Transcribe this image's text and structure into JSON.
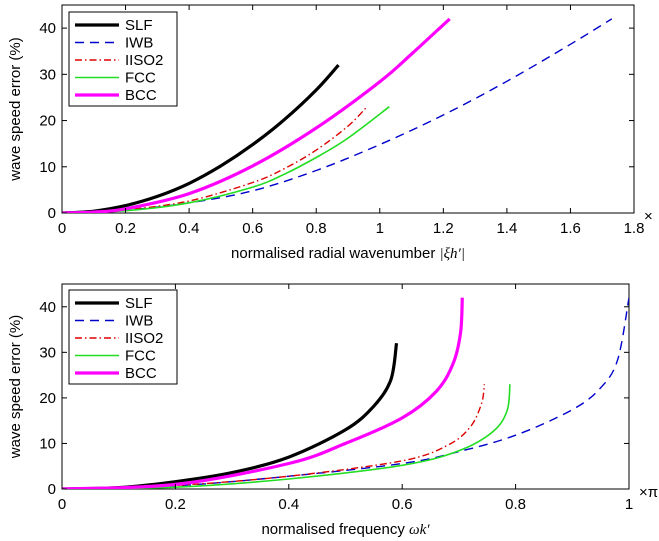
{
  "chart_data": [
    {
      "type": "line",
      "xlabel_text": "normalised radial wavenumber",
      "xlabel_math": "|ξh′|",
      "ylabel": "wave speed error (%)",
      "x_multiplier": "×",
      "xlim": [
        0,
        1.8
      ],
      "ylim": [
        0,
        45
      ],
      "xticks": [
        0,
        0.2,
        0.4,
        0.6,
        0.8,
        1,
        1.2,
        1.4,
        1.6,
        1.8
      ],
      "xtick_labels": [
        "0",
        "0.2",
        "0.4",
        "0.6",
        "0.8",
        "1",
        "1.2",
        "1.4",
        "1.6",
        "1.8"
      ],
      "yticks": [
        0,
        10,
        20,
        30,
        40
      ],
      "ytick_labels": [
        "0",
        "10",
        "20",
        "30",
        "40"
      ],
      "legend_position": "top-left",
      "series": [
        {
          "name": "SLF",
          "color": "#000000",
          "width": 3.2,
          "dash": "",
          "x": [
            0,
            0.1,
            0.2,
            0.3,
            0.4,
            0.5,
            0.6,
            0.7,
            0.8,
            0.87
          ],
          "y": [
            0,
            0.4,
            1.6,
            3.6,
            6.4,
            10.2,
            14.8,
            20.2,
            26.6,
            32
          ]
        },
        {
          "name": "IWB",
          "color": "#0000cc",
          "width": 1.4,
          "dash": "9,6",
          "x": [
            0,
            0.2,
            0.4,
            0.6,
            0.8,
            1.0,
            1.2,
            1.4,
            1.6,
            1.73
          ],
          "y": [
            0,
            0.6,
            2.2,
            4.8,
            9.2,
            14.8,
            21.2,
            28.5,
            36.5,
            42
          ]
        },
        {
          "name": "IISO2",
          "color": "#dd0000",
          "width": 1.4,
          "dash": "7,3,1.5,3",
          "x": [
            0,
            0.2,
            0.4,
            0.6,
            0.7,
            0.8,
            0.9,
            0.96
          ],
          "y": [
            0,
            0.7,
            2.6,
            6.6,
            9.6,
            13.6,
            18.8,
            23
          ]
        },
        {
          "name": "FCC",
          "color": "#22dd22",
          "width": 1.6,
          "dash": "",
          "x": [
            0,
            0.2,
            0.4,
            0.6,
            0.7,
            0.8,
            0.9,
            1.03
          ],
          "y": [
            0,
            0.5,
            2.2,
            5.6,
            8.4,
            12.0,
            16.2,
            23
          ]
        },
        {
          "name": "BCC",
          "color": "#ff00ff",
          "width": 3.2,
          "dash": "",
          "x": [
            0,
            0.1,
            0.2,
            0.4,
            0.6,
            0.8,
            1.0,
            1.1,
            1.22
          ],
          "y": [
            0,
            0.2,
            0.9,
            4.2,
            10.2,
            18.4,
            28.4,
            34.4,
            42
          ]
        }
      ]
    },
    {
      "type": "line",
      "xlabel_text": "normalised frequency",
      "xlabel_math": "ωk′",
      "ylabel": "wave speed error (%)",
      "x_multiplier": "×π",
      "xlim": [
        0,
        1
      ],
      "ylim": [
        0,
        45
      ],
      "xticks": [
        0,
        0.2,
        0.4,
        0.6,
        0.8,
        1
      ],
      "xtick_labels": [
        "0",
        "0.2",
        "0.4",
        "0.6",
        "0.8",
        "1"
      ],
      "yticks": [
        0,
        10,
        20,
        30,
        40
      ],
      "ytick_labels": [
        "0",
        "10",
        "20",
        "30",
        "40"
      ],
      "legend_position": "top-left",
      "series": [
        {
          "name": "SLF",
          "color": "#000000",
          "width": 3.2,
          "dash": "",
          "x": [
            0,
            0.1,
            0.2,
            0.3,
            0.4,
            0.5,
            0.55,
            0.58,
            0.59
          ],
          "y": [
            0,
            0.3,
            1.6,
            3.6,
            7.0,
            13.0,
            18.2,
            24.0,
            32
          ]
        },
        {
          "name": "IWB",
          "color": "#0000cc",
          "width": 1.4,
          "dash": "9,6",
          "x": [
            0,
            0.2,
            0.4,
            0.6,
            0.7,
            0.8,
            0.9,
            0.95,
            0.98,
            1.0
          ],
          "y": [
            0,
            0.7,
            2.8,
            5.6,
            8.2,
            11.8,
            17.4,
            22.2,
            28.4,
            42
          ]
        },
        {
          "name": "IISO2",
          "color": "#dd0000",
          "width": 1.4,
          "dash": "7,3,1.5,3",
          "x": [
            0,
            0.2,
            0.4,
            0.6,
            0.68,
            0.72,
            0.74,
            0.745
          ],
          "y": [
            0,
            0.8,
            2.8,
            6.2,
            9.6,
            13.6,
            18.8,
            23
          ]
        },
        {
          "name": "FCC",
          "color": "#22dd22",
          "width": 1.6,
          "dash": "",
          "x": [
            0,
            0.2,
            0.4,
            0.6,
            0.7,
            0.76,
            0.785,
            0.79
          ],
          "y": [
            0,
            0.4,
            2.2,
            5.2,
            8.4,
            12.6,
            17.2,
            23
          ]
        },
        {
          "name": "BCC",
          "color": "#ff00ff",
          "width": 3.2,
          "dash": "",
          "x": [
            0,
            0.2,
            0.4,
            0.5,
            0.6,
            0.66,
            0.69,
            0.703,
            0.706
          ],
          "y": [
            0,
            1.0,
            5.6,
            10.0,
            15.6,
            21.4,
            27.6,
            34.4,
            42
          ]
        }
      ]
    }
  ]
}
